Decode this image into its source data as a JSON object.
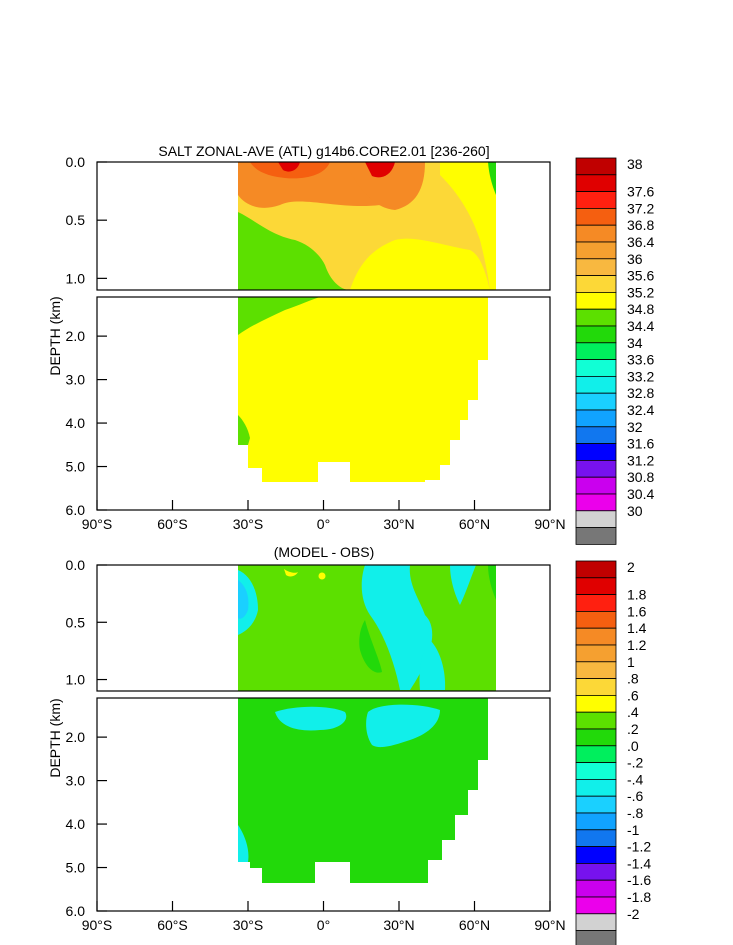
{
  "chart_data": [
    {
      "type": "contour",
      "title": "SALT ZONAL-AVE (ATL) g14b6.CORE2.01 [236-260]",
      "ylabel": "DEPTH (km)",
      "x_ticks": [
        "90°S",
        "60°S",
        "30°S",
        "0°",
        "30°N",
        "60°N",
        "90°N"
      ],
      "xlim": [
        -90,
        90
      ],
      "y_ticks_upper": [
        "0.0",
        "0.5",
        "1.0"
      ],
      "y_ticks_lower": [
        "2.0",
        "3.0",
        "4.0",
        "5.0",
        "6.0"
      ],
      "ylim_km": [
        0,
        6
      ],
      "colorbar": [
        "38",
        "37.6",
        "37.2",
        "36.8",
        "36.4",
        "36",
        "35.6",
        "35.2",
        "34.8",
        "34.4",
        "34",
        "33.6",
        "33.2",
        "32.8",
        "32.4",
        "32",
        "31.6",
        "31.2",
        "30.8",
        "30.4",
        "30"
      ]
    },
    {
      "type": "contour",
      "title": "(MODEL - OBS)",
      "ylabel": "DEPTH (km)",
      "x_ticks": [
        "90°S",
        "60°S",
        "30°S",
        "0°",
        "30°N",
        "60°N",
        "90°N"
      ],
      "xlim": [
        -90,
        90
      ],
      "y_ticks_upper": [
        "0.0",
        "0.5",
        "1.0"
      ],
      "y_ticks_lower": [
        "2.0",
        "3.0",
        "4.0",
        "5.0",
        "6.0"
      ],
      "ylim_km": [
        0,
        6
      ],
      "colorbar": [
        "2",
        "1.8",
        "1.6",
        "1.4",
        "1.2",
        "1",
        ".8",
        ".6",
        ".4",
        ".2",
        ".0",
        "-.2",
        "-.4",
        "-.6",
        "-.8",
        "-1",
        "-1.2",
        "-1.4",
        "-1.6",
        "-1.8",
        "-2"
      ]
    }
  ],
  "colorbar_colors": [
    "#c00000",
    "#e00000",
    "#ff2010",
    "#f55f10",
    "#f58a25",
    "#f5a030",
    "#f8b840",
    "#fcd837",
    "#fffe00",
    "#5ce000",
    "#22d90a",
    "#00ef5d",
    "#11ffd5",
    "#11efea",
    "#1ad0ff",
    "#11a3ff",
    "#1177ef",
    "#0000ff",
    "#7712ee",
    "#ca00ee",
    "#eb00eb",
    "#d2d2d2",
    "#777777"
  ],
  "colorbar_keys": [
    "c1",
    "c2",
    "c3",
    "c4",
    "c5",
    "c6",
    "c7",
    "c8",
    "c9",
    "c10",
    "c11",
    "c12",
    "c13",
    "c14",
    "c15",
    "c16",
    "c17",
    "c18",
    "c19",
    "c20",
    "c21",
    "c22"
  ]
}
